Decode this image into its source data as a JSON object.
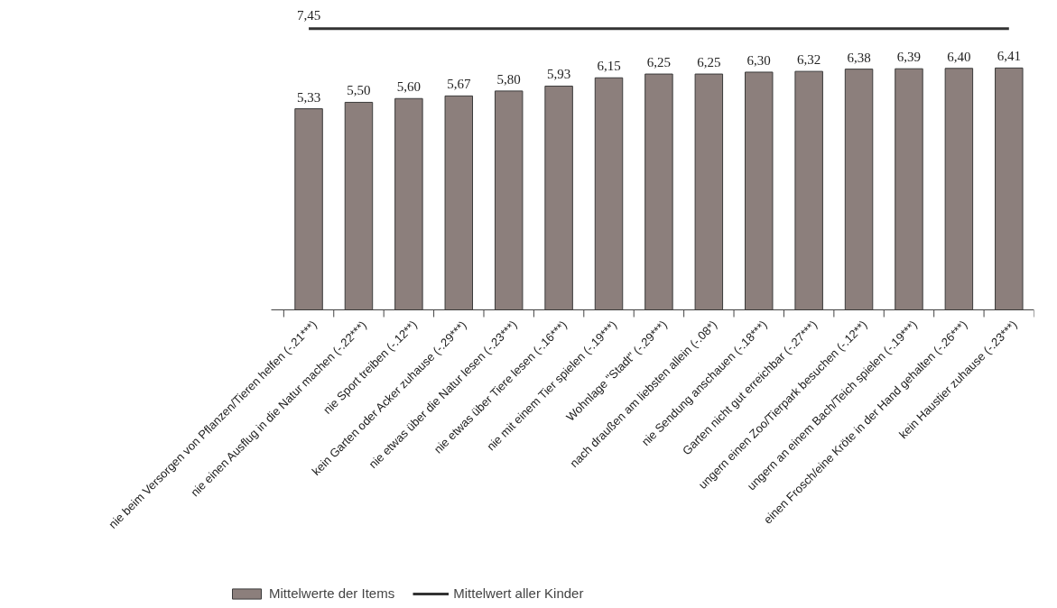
{
  "chart_data": {
    "type": "bar",
    "categories": [
      "nie beim Versorgen von Pflanzen/Tieren helfen (-.21***)",
      "nie einen Ausflug in die Natur machen (-.22***)",
      "nie Sport treiben (-.12**)",
      "kein Garten oder Acker zuhause (-.29***)",
      "nie etwas über die Natur lesen (-.23***)",
      "nie etwas über Tiere lesen (-.16***)",
      "nie mit einem Tier spielen (-.19***)",
      "Wohnlage \"Stadt\" (-.29***)",
      "nach draußen am liebsten allein (-.08*)",
      "nie Sendung anschauen (-.18***)",
      "Garten nicht gut erreichbar (-.27***)",
      "ungern einen Zoo/Tierpark besuchen (-.12**)",
      "ungern an einem Bach/Teich spielen (-.19***)",
      "einen Frosch/eine Kröte in der Hand gehalten (-.26***)",
      "kein Haustier zuhause (-.23***)"
    ],
    "series": [
      {
        "name": "Mittelwerte der Items",
        "color": "#8c7f7c",
        "values": [
          5.33,
          5.5,
          5.6,
          5.67,
          5.8,
          5.93,
          6.15,
          6.25,
          6.25,
          6.3,
          6.32,
          6.38,
          6.39,
          6.4,
          6.41
        ],
        "value_labels": [
          "5,33",
          "5,50",
          "5,60",
          "5,67",
          "5,80",
          "5,93",
          "6,15",
          "6,25",
          "6,25",
          "6,30",
          "6,32",
          "6,38",
          "6,39",
          "6,40",
          "6,41"
        ]
      },
      {
        "name": "Mittelwert aller Kinder",
        "type": "line",
        "color": "#333333",
        "values": [
          7.45,
          7.45,
          7.45,
          7.45,
          7.45,
          7.45,
          7.45,
          7.45,
          7.45,
          7.45,
          7.45,
          7.45,
          7.45,
          7.45,
          7.45
        ],
        "value_labels": [
          "7,45",
          null,
          null,
          null,
          null,
          null,
          null,
          null,
          null,
          null,
          null,
          null,
          null,
          null,
          null
        ]
      }
    ],
    "tick_labels": "x",
    "grid": false,
    "legend": "bottom"
  }
}
